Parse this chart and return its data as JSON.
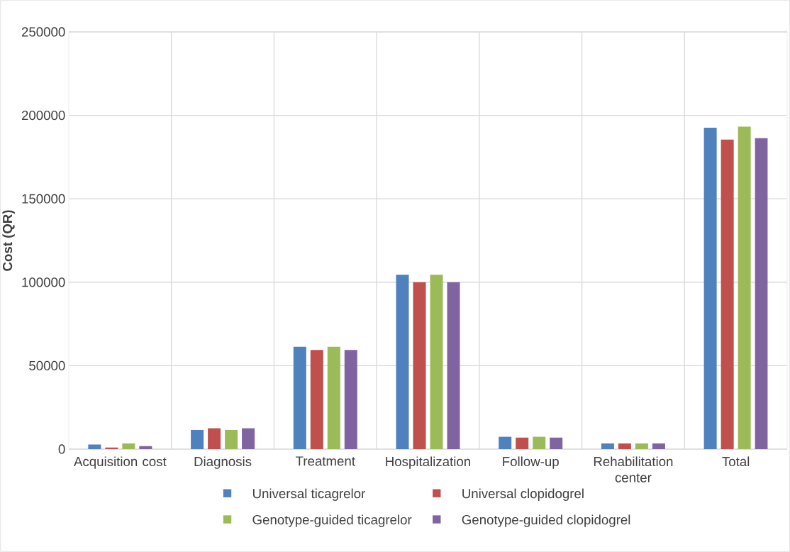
{
  "chart_data": {
    "type": "bar",
    "ylabel": "Cost (QR)",
    "categories": [
      "Acquisition cost",
      "Diagnosis",
      "Treatment",
      "Hospitalization",
      "Follow-up",
      "Rehabilitation center",
      "Total"
    ],
    "series": [
      {
        "name": "Universal ticagrelor",
        "color": "#4f81bd",
        "values": [
          2800,
          11500,
          61300,
          104500,
          7400,
          3400,
          192600
        ]
      },
      {
        "name": "Universal clopidogrel",
        "color": "#c0504d",
        "values": [
          900,
          12500,
          59400,
          100000,
          6900,
          3400,
          185500
        ]
      },
      {
        "name": "Genotype-guided ticagrelor",
        "color": "#9bbb59",
        "values": [
          3400,
          11500,
          61300,
          104500,
          7400,
          3400,
          193200
        ]
      },
      {
        "name": "Genotype-guided clopidogrel",
        "color": "#8064a2",
        "values": [
          1800,
          12500,
          59400,
          100000,
          6900,
          3400,
          186300
        ]
      }
    ],
    "ylim": [
      0,
      250000
    ],
    "yticks": [
      0,
      50000,
      100000,
      150000,
      200000,
      250000
    ],
    "grid": true,
    "legend": "bottom"
  }
}
